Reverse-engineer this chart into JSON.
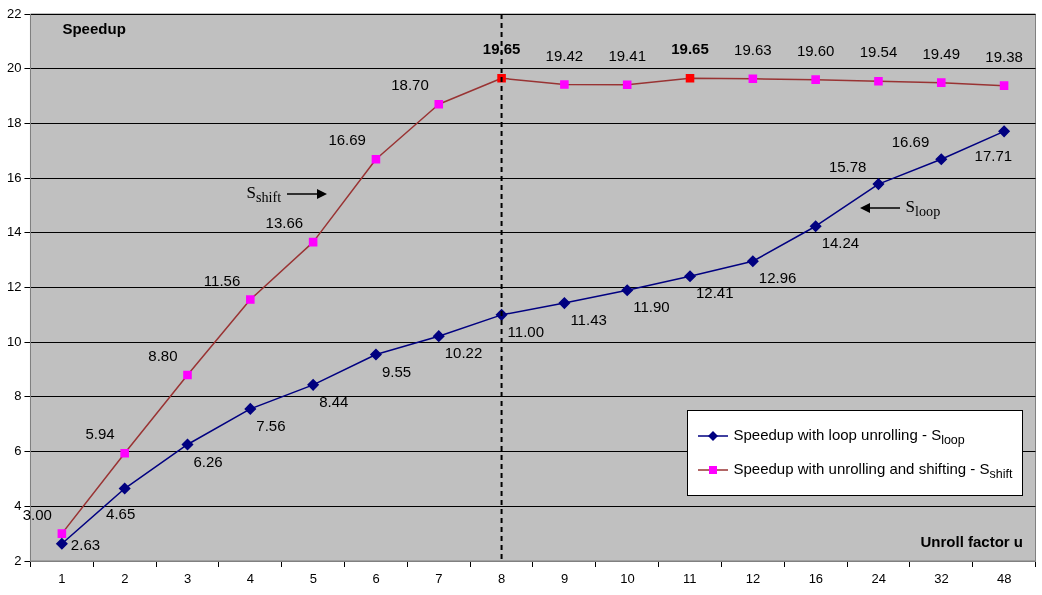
{
  "chart_data": {
    "type": "line",
    "xlabel": "Unroll factor u",
    "ylabel": "Speedup",
    "categories": [
      "1",
      "2",
      "3",
      "4",
      "5",
      "6",
      "7",
      "8",
      "9",
      "10",
      "11",
      "12",
      "16",
      "24",
      "32",
      "48"
    ],
    "series": [
      {
        "name": "Speedup with loop unrolling - S$_{loop}$",
        "color": "#000080",
        "marker": "diamond",
        "values": [
          2.63,
          4.65,
          6.26,
          7.56,
          8.44,
          9.55,
          10.22,
          11.0,
          11.43,
          11.9,
          12.41,
          12.96,
          14.24,
          15.78,
          16.69,
          17.71
        ],
        "value_labels": [
          "2.63",
          "4.65",
          "6.26",
          "7.56",
          "8.44",
          "9.55",
          "10.22",
          "11.00",
          "11.43",
          "11.90",
          "12.41",
          "12.96",
          "14.24",
          "15.78",
          "16.69",
          "17.71"
        ]
      },
      {
        "name": "Speedup with unrolling and shifting - S$_{shift}$",
        "color": "#993333",
        "marker": "square",
        "colors": [
          "#ff00ff",
          "#ff00ff",
          "#ff00ff",
          "#ff00ff",
          "#ff00ff",
          "#ff00ff",
          "#ff00ff",
          "#ff0000",
          "#ff00ff",
          "#ff00ff",
          "#ff0000",
          "#ff00ff",
          "#ff00ff",
          "#ff00ff",
          "#ff00ff",
          "#ff00ff"
        ],
        "values": [
          3.0,
          5.94,
          8.8,
          11.56,
          13.66,
          16.69,
          18.7,
          19.65,
          19.42,
          19.41,
          19.65,
          19.63,
          19.6,
          19.54,
          19.49,
          19.38
        ],
        "value_labels": [
          "3.00",
          "5.94",
          "8.80",
          "11.56",
          "13.66",
          "16.69",
          "18.70",
          "19.65",
          "19.42",
          "19.41",
          "19.65",
          "19.63",
          "19.60",
          "19.54",
          "19.49",
          "19.38"
        ]
      }
    ],
    "ylim": [
      2,
      22
    ],
    "yticks": [
      2,
      4,
      6,
      8,
      10,
      12,
      14,
      16,
      18,
      20,
      22
    ],
    "grid": "y",
    "legend": "bottom right",
    "ref_lines": [
      {
        "axis": "x",
        "value": "8",
        "color": "#000000",
        "line_style": "dashed"
      }
    ],
    "annotations": [
      "S$_{shift}$",
      "S$_{loop}$"
    ]
  }
}
